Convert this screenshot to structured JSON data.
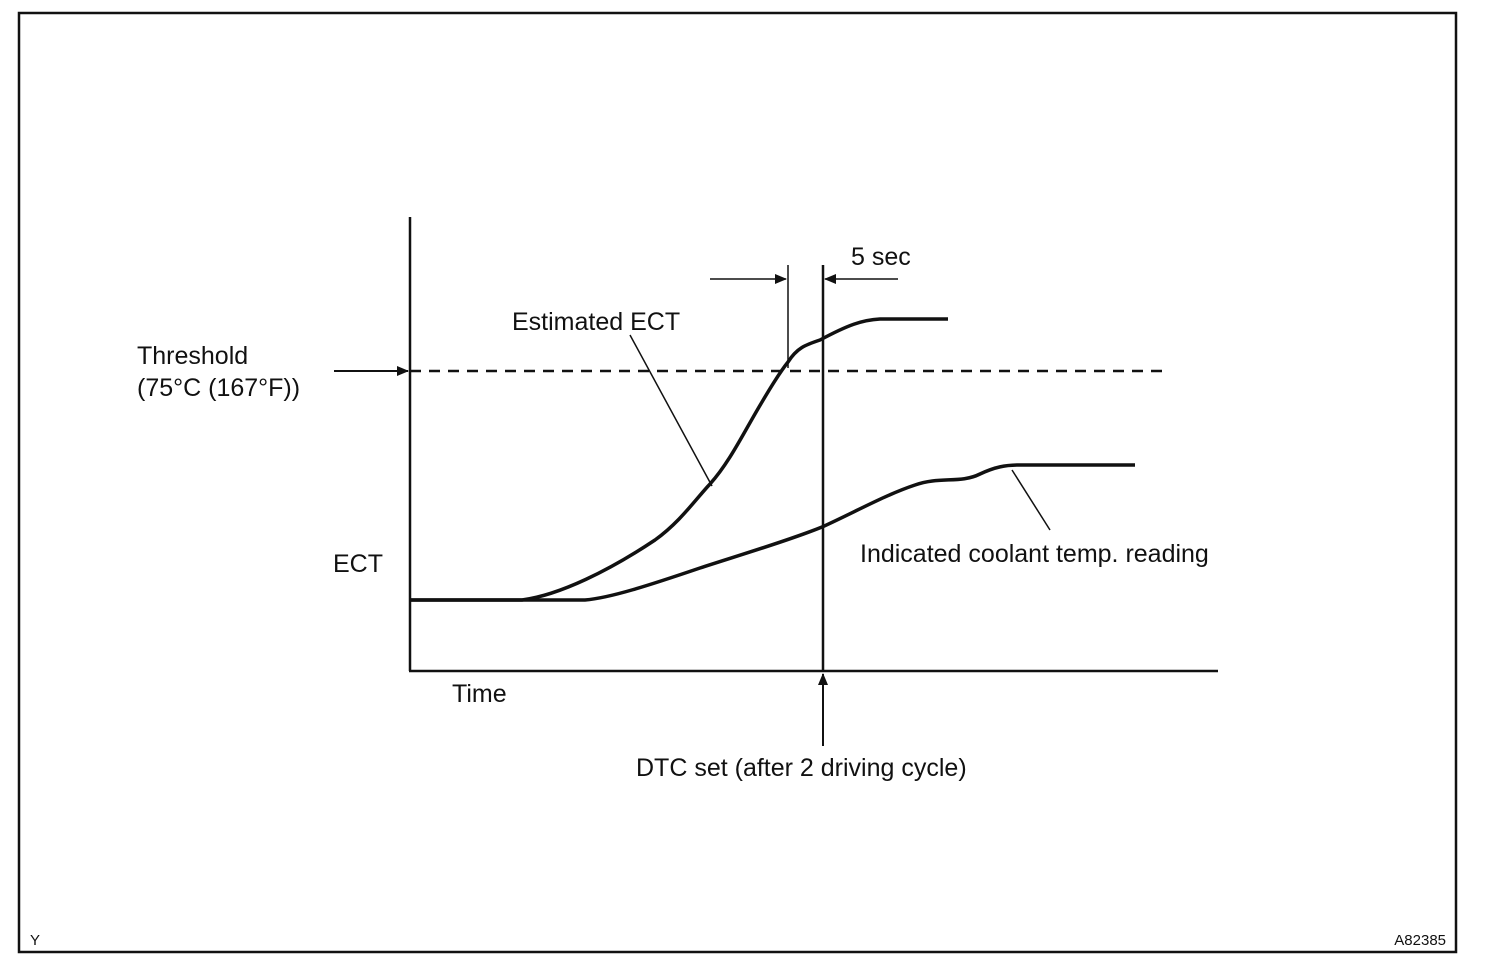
{
  "labels": {
    "threshold_line1": "Threshold",
    "threshold_line2": "(75°C (167°F))",
    "ect_axis": "ECT",
    "time_axis": "Time",
    "estimated_ect": "Estimated ECT",
    "indicated_reading": "Indicated coolant temp. reading",
    "five_sec": "5 sec",
    "dtc_set": "DTC set (after 2 driving cycle)",
    "corner_left": "Y",
    "corner_right": "A82385"
  },
  "colors": {
    "ink": "#111111",
    "background": "#ffffff"
  }
}
